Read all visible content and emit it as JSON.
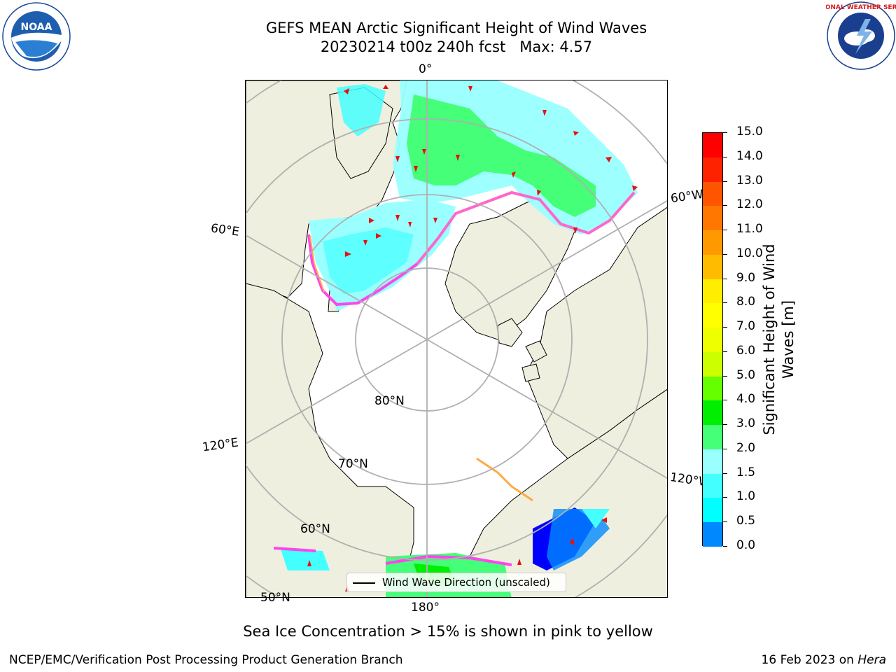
{
  "title": {
    "line1": "GEFS MEAN Arctic Significant Height of Wind Waves",
    "line2": "20230214 t00z 240h fcst   Max: 4.57"
  },
  "logos": {
    "left": "NOAA",
    "right": "NATIONAL WEATHER SERVICE"
  },
  "map": {
    "projection": "north-polar-stereographic",
    "meridian_labels": [
      "0°",
      "60°E",
      "120°E",
      "180°",
      "60°W",
      "120°W"
    ],
    "parallel_labels": [
      "80°N",
      "70°N",
      "60°N",
      "50°N"
    ],
    "land_color": "#efefdf",
    "ocean_color": "#ffffff",
    "grid_color": "#b0b0b0",
    "arrow_color": "#e8100c"
  },
  "legend": {
    "label": "Wind Wave Direction (unscaled)"
  },
  "colorbar": {
    "label": "Significant Height of Wind Waves [m]",
    "ticks": [
      "15.0",
      "14.0",
      "13.0",
      "12.0",
      "11.0",
      "10.0",
      "9.0",
      "8.0",
      "7.0",
      "6.0",
      "5.0",
      "4.0",
      "3.0",
      "2.0",
      "1.5",
      "1.0",
      "0.5",
      "0.0"
    ],
    "colors": [
      "#ff0000",
      "#ff2200",
      "#ff5500",
      "#ff7700",
      "#ff9900",
      "#ffbb00",
      "#ffee00",
      "#ffff00",
      "#eeff00",
      "#ccff00",
      "#66ff00",
      "#00ee00",
      "#44ff77",
      "#99ffff",
      "#44ffff",
      "#00ffff",
      "#0088ff",
      "#0000ff"
    ]
  },
  "note": "Sea Ice Concentration > 15% is shown in pink to yellow",
  "footer": {
    "left": "NCEP/EMC/Verification Post Processing Product Generation Branch",
    "right_date": "16 Feb 2023 on ",
    "right_host": "Hera"
  }
}
